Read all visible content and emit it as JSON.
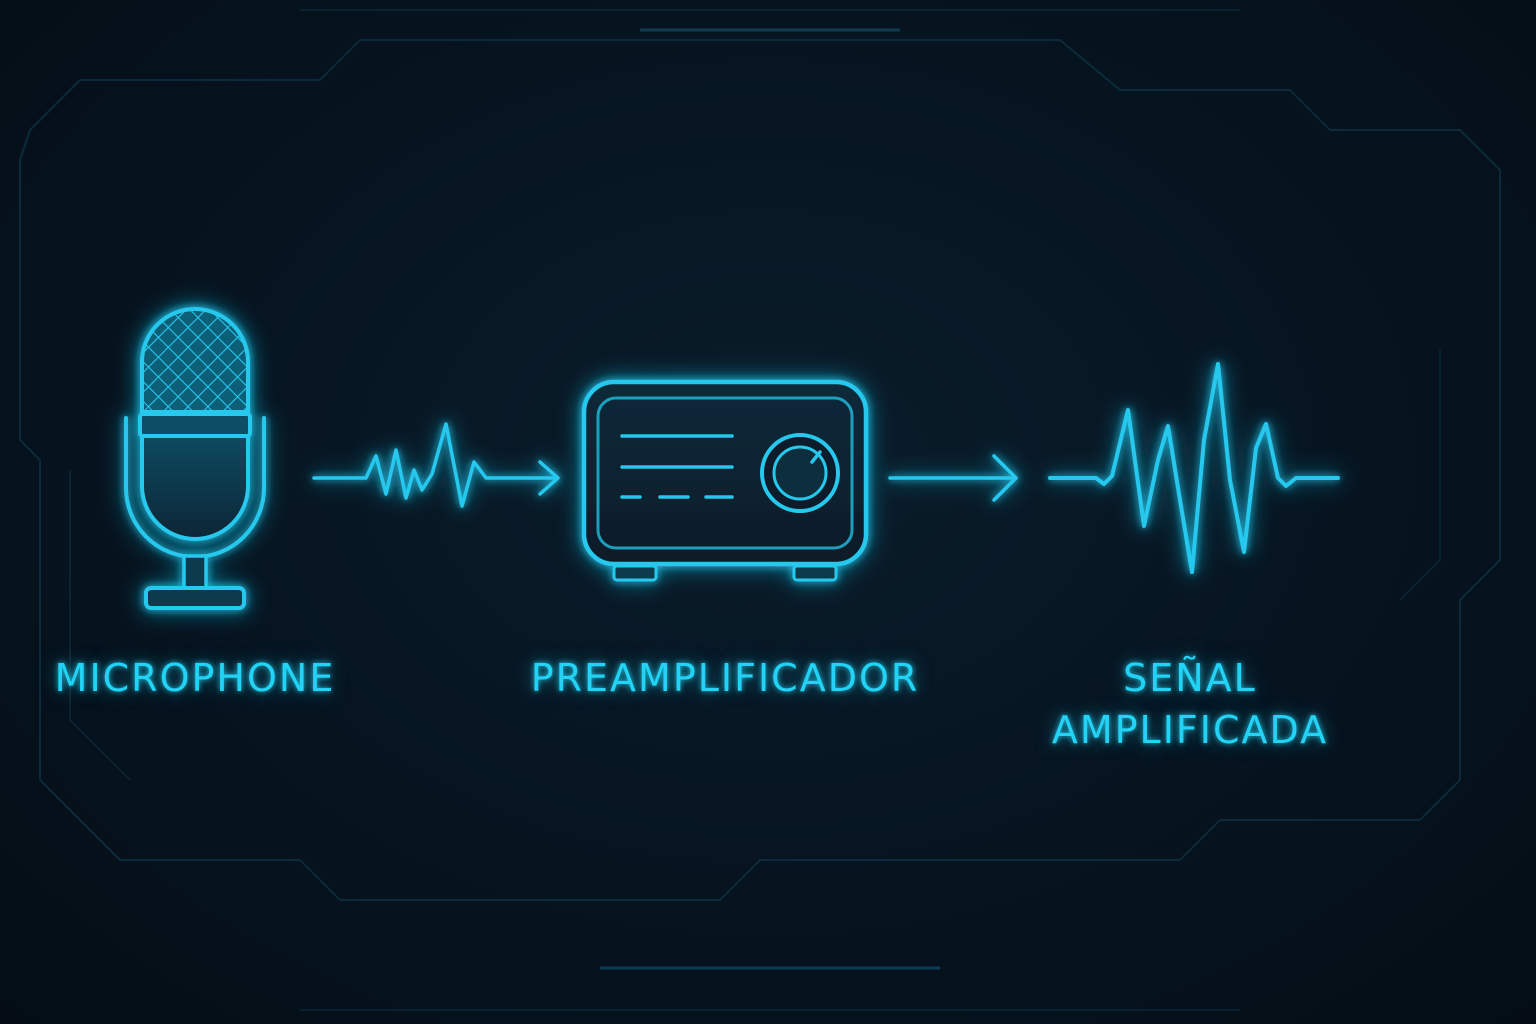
{
  "stages": [
    {
      "id": "microphone",
      "label": "MICROPHONE",
      "icon": "microphone-icon"
    },
    {
      "id": "preamplifier",
      "label": "PREAMPLIFICADOR",
      "icon": "preamplifier-icon"
    },
    {
      "id": "output",
      "label_line1": "SEÑAL",
      "label_line2": "AMPLIFICADA",
      "icon": "amplified-waveform-icon"
    }
  ],
  "connectors": [
    {
      "from": "microphone",
      "to": "preamplifier",
      "type": "small-signal-wave-arrow"
    },
    {
      "from": "preamplifier",
      "to": "output",
      "type": "arrow"
    }
  ],
  "colors": {
    "background": "#06121c",
    "accent": "#22d3f5",
    "accent_dim": "#0e6f8a"
  }
}
